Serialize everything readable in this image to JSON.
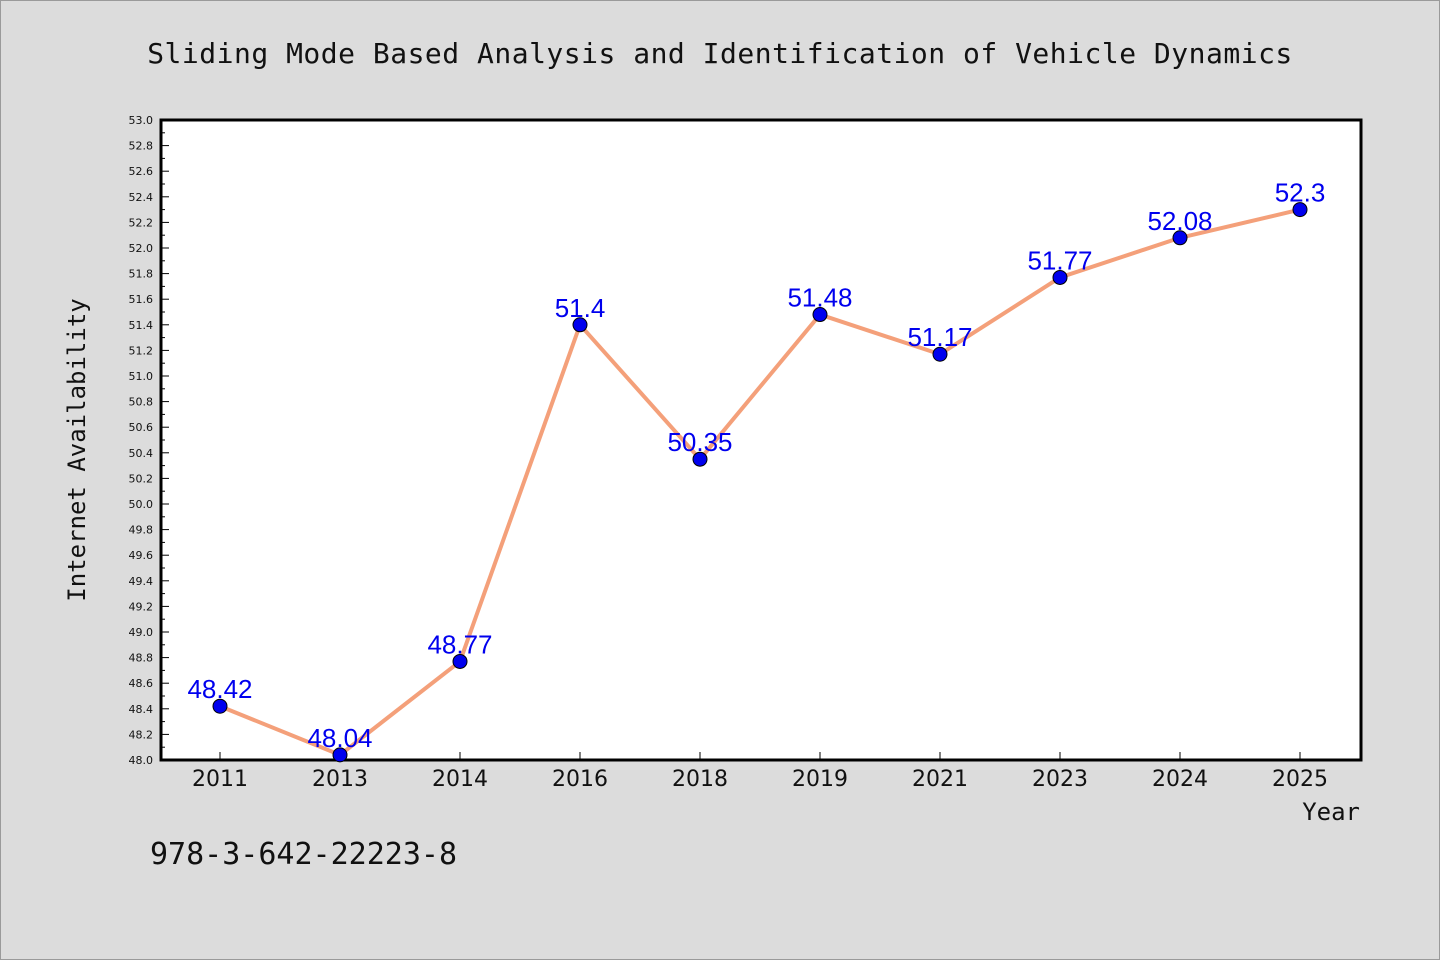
{
  "chart_data": {
    "type": "line",
    "title": "Sliding Mode Based Analysis and Identification of Vehicle Dynamics",
    "xlabel": "Year",
    "ylabel": "Internet Availability",
    "categories": [
      "2011",
      "2013",
      "2014",
      "2016",
      "2018",
      "2019",
      "2021",
      "2023",
      "2024",
      "2025"
    ],
    "series": [
      {
        "values": [
          48.42,
          48.04,
          48.77,
          51.4,
          50.35,
          51.48,
          51.17,
          51.77,
          52.08,
          52.3
        ],
        "labels": [
          "48.42",
          "48.04",
          "48.77",
          "51.4",
          "50.35",
          "51.48",
          "51.17",
          "51.77",
          "52.08",
          "52.3"
        ],
        "line_color": "#f4a07a",
        "marker_color": "#0000ee"
      }
    ],
    "ylim": [
      48.0,
      53.0
    ],
    "ytick_step": 0.2,
    "grid": false,
    "legend": "none"
  },
  "footer": {
    "isbn": "978-3-642-22223-8"
  }
}
